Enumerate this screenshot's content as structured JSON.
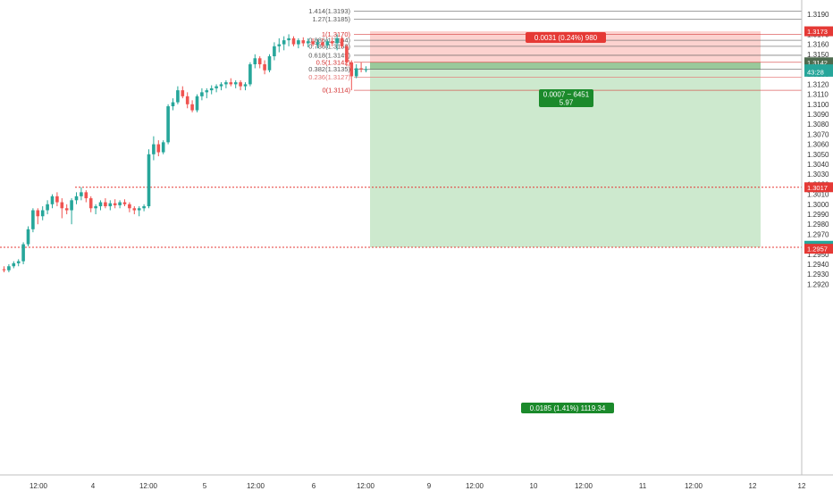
{
  "chart_data": {
    "type": "candlestick",
    "x_ticks": [
      "12:00",
      "4",
      "12:00",
      "5",
      "12:00",
      "6",
      "12:00",
      "9",
      "12:00",
      "10",
      "12:00",
      "11",
      "12:00",
      "12",
      "12"
    ],
    "y_ticks": [
      "1.3190",
      "1.3170",
      "1.3160",
      "1.3150",
      "1.3140",
      "1.3130",
      "1.3120",
      "1.3110",
      "1.3100",
      "1.3090",
      "1.3080",
      "1.3070",
      "1.3060",
      "1.3050",
      "1.3040",
      "1.3030",
      "1.3020",
      "1.3010",
      "1.3000",
      "1.2990",
      "1.2980",
      "1.2970",
      "1.2960",
      "1.2950",
      "1.2940",
      "1.2930",
      "1.2920"
    ],
    "ylim": [
      1.2915,
      1.3195
    ],
    "fib_levels": [
      {
        "label": "1.414(1.3193)",
        "price": 1.3193,
        "color": "#555555"
      },
      {
        "label": "1.27(1.3185)",
        "price": 1.3185,
        "color": "#555555"
      },
      {
        "label": "1(1.3170)",
        "price": 1.317,
        "color": "#d32f2f"
      },
      {
        "label": "0.886(1.3164)",
        "price": 1.3164,
        "color": "#555555"
      },
      {
        "label": "0.786(1.3158)",
        "price": 1.3158,
        "color": "#555555"
      },
      {
        "label": "0.618(1.3149)",
        "price": 1.3149,
        "color": "#555555"
      },
      {
        "label": "0.5(1.3142)",
        "price": 1.3142,
        "color": "#d32f2f"
      },
      {
        "label": "0.382(1.3135)",
        "price": 1.3135,
        "color": "#555555"
      },
      {
        "label": "0.236(1.3127)",
        "price": 1.3127,
        "color": "#e57373"
      },
      {
        "label": "0(1.3114)",
        "price": 1.3114,
        "color": "#d32f2f"
      }
    ],
    "position": {
      "entry": 1.3142,
      "stop": 1.3173,
      "target": 1.2957,
      "stop_label": "0.0031 (0.24%) 980",
      "entry_label_1": "0.0007 ~ 6451",
      "entry_label_2": "5.97",
      "target_label": "0.0185 (1.41%) 1119.34"
    },
    "horizontal_lines": [
      {
        "price": 1.3017,
        "color": "#e53935"
      },
      {
        "price": 1.2957,
        "color": "#e53935"
      }
    ],
    "price_badges": [
      {
        "text": "1.3173",
        "price": 1.3173,
        "color": "#e53935"
      },
      {
        "text": "1.3142",
        "price": 1.3142,
        "color": "#4e6b4f"
      },
      {
        "text": "1.3135",
        "price": 1.3135,
        "color": "#26a69a"
      },
      {
        "text": "43:28",
        "price": 1.31325,
        "color": "#26a69a"
      },
      {
        "text": "1.3017",
        "price": 1.3017,
        "color": "#e53935"
      },
      {
        "text": "1.2957",
        "price": 1.29585,
        "color": "#26a69a"
      },
      {
        "text": "1.2957",
        "price": 1.29555,
        "color": "#e53935"
      }
    ],
    "candles": [
      [
        1.2935,
        1.2938,
        1.2932,
        1.2934
      ],
      [
        1.2934,
        1.294,
        1.2932,
        1.2938
      ],
      [
        1.2938,
        1.2943,
        1.2936,
        1.2941
      ],
      [
        1.2941,
        1.2945,
        1.2938,
        1.2943
      ],
      [
        1.2943,
        1.2962,
        1.294,
        1.296
      ],
      [
        1.296,
        1.2978,
        1.2958,
        1.2975
      ],
      [
        1.2975,
        1.2996,
        1.2972,
        1.2994
      ],
      [
        1.2994,
        1.2996,
        1.298,
        1.2988
      ],
      [
        1.2988,
        1.2998,
        1.2984,
        1.2994
      ],
      [
        1.2994,
        1.3004,
        1.299,
        1.3
      ],
      [
        1.3,
        1.301,
        1.2996,
        1.3008
      ],
      [
        1.3008,
        1.3012,
        1.2998,
        1.3002
      ],
      [
        1.3002,
        1.3006,
        1.2986,
        1.2996
      ],
      [
        1.2996,
        1.3,
        1.299,
        1.2994
      ],
      [
        1.2994,
        1.3006,
        1.298,
        1.3004
      ],
      [
        1.3004,
        1.3012,
        1.3,
        1.3008
      ],
      [
        1.3008,
        1.3017,
        1.3004,
        1.3012
      ],
      [
        1.3012,
        1.3014,
        1.3002,
        1.3006
      ],
      [
        1.3006,
        1.3008,
        1.2992,
        1.2996
      ],
      [
        1.2996,
        1.3,
        1.299,
        1.2998
      ],
      [
        1.2998,
        1.3004,
        1.2994,
        1.3002
      ],
      [
        1.3002,
        1.3006,
        1.2996,
        1.2998
      ],
      [
        1.2998,
        1.3004,
        1.2994,
        1.3001
      ],
      [
        1.3001,
        1.3005,
        1.2996,
        1.2999
      ],
      [
        1.2999,
        1.3004,
        1.2996,
        1.3002
      ],
      [
        1.3002,
        1.3005,
        1.2998,
        1.3
      ],
      [
        1.3,
        1.3002,
        1.2992,
        1.2996
      ],
      [
        1.2996,
        1.2998,
        1.299,
        1.2994
      ],
      [
        1.2994,
        1.2998,
        1.2988,
        1.2996
      ],
      [
        1.2996,
        1.3,
        1.2993,
        1.2998
      ],
      [
        1.2998,
        1.3055,
        1.2996,
        1.305
      ],
      [
        1.305,
        1.3068,
        1.3044,
        1.306
      ],
      [
        1.306,
        1.3064,
        1.3048,
        1.3052
      ],
      [
        1.3052,
        1.3064,
        1.305,
        1.3062
      ],
      [
        1.3062,
        1.31,
        1.306,
        1.3098
      ],
      [
        1.3098,
        1.3106,
        1.3094,
        1.3102
      ],
      [
        1.3102,
        1.3118,
        1.31,
        1.3114
      ],
      [
        1.3114,
        1.3118,
        1.3106,
        1.3108
      ],
      [
        1.3108,
        1.3112,
        1.3096,
        1.31
      ],
      [
        1.31,
        1.3104,
        1.3092,
        1.3094
      ],
      [
        1.3094,
        1.311,
        1.3092,
        1.3108
      ],
      [
        1.3108,
        1.3116,
        1.3104,
        1.3112
      ],
      [
        1.3112,
        1.3116,
        1.3106,
        1.3114
      ],
      [
        1.3114,
        1.3119,
        1.311,
        1.3116
      ],
      [
        1.3116,
        1.312,
        1.3112,
        1.3118
      ],
      [
        1.3118,
        1.3122,
        1.3114,
        1.312
      ],
      [
        1.312,
        1.3124,
        1.3116,
        1.3122
      ],
      [
        1.3122,
        1.3126,
        1.3118,
        1.312
      ],
      [
        1.312,
        1.3124,
        1.3116,
        1.3122
      ],
      [
        1.3122,
        1.3124,
        1.3114,
        1.3118
      ],
      [
        1.3118,
        1.3122,
        1.3114,
        1.312
      ],
      [
        1.312,
        1.3142,
        1.3118,
        1.314
      ],
      [
        1.314,
        1.315,
        1.3136,
        1.3146
      ],
      [
        1.3146,
        1.3148,
        1.3136,
        1.314
      ],
      [
        1.314,
        1.3144,
        1.313,
        1.3134
      ],
      [
        1.3134,
        1.315,
        1.3132,
        1.3148
      ],
      [
        1.3148,
        1.3162,
        1.3144,
        1.3158
      ],
      [
        1.3158,
        1.3166,
        1.3152,
        1.316
      ],
      [
        1.316,
        1.3168,
        1.3154,
        1.3164
      ],
      [
        1.3164,
        1.317,
        1.3158,
        1.3166
      ],
      [
        1.3166,
        1.3168,
        1.3158,
        1.316
      ],
      [
        1.316,
        1.3166,
        1.3156,
        1.3164
      ],
      [
        1.3164,
        1.3167,
        1.3158,
        1.3161
      ],
      [
        1.3161,
        1.3166,
        1.3157,
        1.3163
      ],
      [
        1.3163,
        1.3166,
        1.3158,
        1.316
      ],
      [
        1.316,
        1.3165,
        1.3156,
        1.3162
      ],
      [
        1.3162,
        1.3166,
        1.3157,
        1.3159
      ],
      [
        1.3159,
        1.3165,
        1.3156,
        1.3163
      ],
      [
        1.3163,
        1.3167,
        1.3158,
        1.3161
      ],
      [
        1.3161,
        1.317,
        1.3154,
        1.3166
      ],
      [
        1.3166,
        1.3168,
        1.3156,
        1.3158
      ],
      [
        1.3158,
        1.316,
        1.3138,
        1.3142
      ],
      [
        1.3142,
        1.3144,
        1.3114,
        1.3128
      ],
      [
        1.3128,
        1.314,
        1.3126,
        1.3136
      ],
      [
        1.3136,
        1.3142,
        1.3132,
        1.3135
      ],
      [
        1.3135,
        1.3138,
        1.3132,
        1.3135
      ]
    ]
  }
}
